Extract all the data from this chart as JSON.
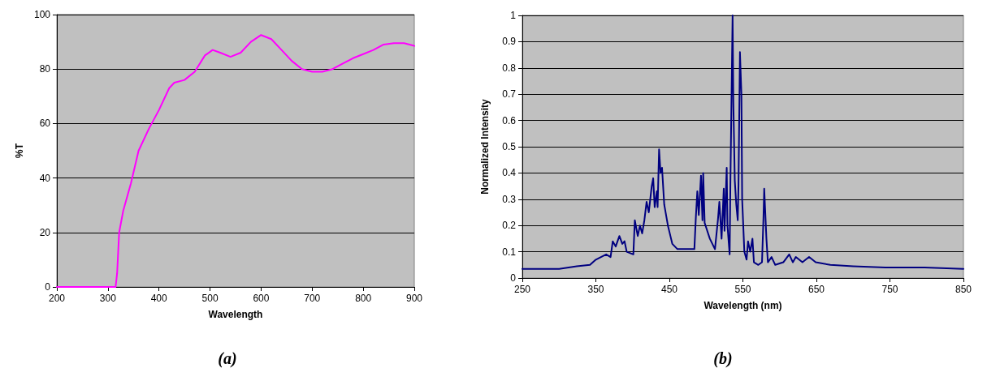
{
  "chart_data": [
    {
      "type": "line",
      "xlabel": "Wavelength",
      "ylabel": "%T",
      "annotations": [
        "(a)"
      ],
      "xlim": [
        200,
        900
      ],
      "xticks": [
        200,
        300,
        400,
        500,
        600,
        700,
        800,
        900
      ],
      "ylim": [
        0,
        100
      ],
      "yticks": [
        0,
        20,
        40,
        60,
        80,
        100
      ],
      "grid": "y",
      "marker": "none",
      "line_style": "solid",
      "series": [
        {
          "color": "#ff00ff",
          "x": [
            200,
            250,
            300,
            315,
            318,
            322,
            330,
            345,
            360,
            380,
            400,
            420,
            430,
            450,
            470,
            490,
            505,
            520,
            540,
            560,
            580,
            600,
            620,
            640,
            660,
            680,
            700,
            720,
            740,
            760,
            780,
            800,
            820,
            840,
            860,
            880,
            900
          ],
          "values": [
            0,
            0,
            0,
            0,
            5,
            20,
            28,
            38,
            50,
            58,
            65,
            73,
            75,
            76,
            79,
            85,
            87,
            86,
            84.5,
            86,
            90,
            92.5,
            91,
            87,
            83,
            80,
            79,
            79,
            80,
            82,
            84,
            85.5,
            87,
            89,
            89.5,
            89.5,
            88.5
          ]
        }
      ]
    },
    {
      "type": "line",
      "xlabel": "Wavelength (nm)",
      "ylabel": "Normalized Intensity",
      "annotations": [
        "(b)"
      ],
      "xlim": [
        250,
        850
      ],
      "xticks": [
        250,
        350,
        450,
        550,
        650,
        750,
        850
      ],
      "ylim": [
        0,
        1
      ],
      "yticks": [
        0,
        0.1,
        0.2,
        0.3,
        0.4,
        0.5,
        0.6,
        0.7,
        0.8,
        0.9,
        1
      ],
      "grid": "y",
      "marker": "none",
      "line_style": "solid",
      "series": [
        {
          "color": "#000080",
          "x": [
            250,
            300,
            324,
            342,
            350,
            364,
            370,
            373,
            377,
            382,
            386,
            389,
            392,
            401,
            403,
            407,
            410,
            413,
            416,
            419,
            422,
            426,
            428,
            430,
            433,
            434,
            436,
            438,
            440,
            443,
            448,
            454,
            461,
            474,
            484,
            486,
            488,
            490,
            493,
            495,
            496,
            498,
            505,
            512,
            516,
            518,
            521,
            524,
            525,
            528,
            529,
            532,
            533,
            536,
            537,
            539,
            541,
            543,
            544,
            546,
            548,
            549,
            552,
            555,
            557,
            560,
            563,
            565,
            571,
            576,
            578,
            579,
            582,
            584,
            589,
            594,
            605,
            613,
            618,
            622,
            631,
            640,
            649,
            669,
            700,
            744,
            797,
            850
          ],
          "values": [
            0.035,
            0.035,
            0.045,
            0.05,
            0.07,
            0.09,
            0.08,
            0.14,
            0.12,
            0.16,
            0.13,
            0.14,
            0.1,
            0.09,
            0.22,
            0.16,
            0.2,
            0.17,
            0.22,
            0.29,
            0.25,
            0.35,
            0.38,
            0.27,
            0.33,
            0.27,
            0.49,
            0.4,
            0.42,
            0.28,
            0.2,
            0.13,
            0.11,
            0.11,
            0.11,
            0.23,
            0.33,
            0.24,
            0.39,
            0.22,
            0.4,
            0.21,
            0.15,
            0.11,
            0.22,
            0.29,
            0.15,
            0.34,
            0.18,
            0.42,
            0.2,
            0.09,
            0.36,
            1.0,
            0.67,
            0.37,
            0.28,
            0.22,
            0.35,
            0.86,
            0.7,
            0.3,
            0.1,
            0.07,
            0.14,
            0.1,
            0.15,
            0.06,
            0.05,
            0.06,
            0.23,
            0.34,
            0.15,
            0.06,
            0.08,
            0.05,
            0.06,
            0.09,
            0.06,
            0.08,
            0.06,
            0.08,
            0.06,
            0.05,
            0.045,
            0.04,
            0.04,
            0.035
          ]
        }
      ]
    }
  ]
}
